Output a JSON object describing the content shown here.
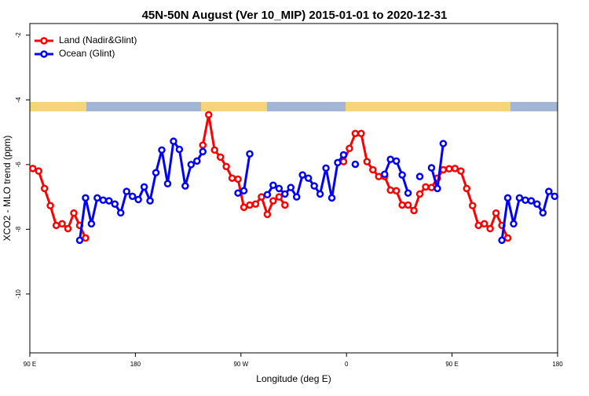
{
  "chart_data": {
    "type": "line",
    "title": "45N-50N August (Ver 10_MIP)   2015-01-01 to 2020-12-31",
    "xlabel": "Longitude (deg E)",
    "ylabel": "XCO2 - MLO trend (ppm)",
    "x": [
      92.5,
      97.5,
      102.5,
      107.5,
      112.5,
      117.5,
      122.5,
      127.5,
      132.5,
      137.5,
      142.5,
      147.5,
      152.5,
      157.5,
      162.5,
      167.5,
      172.5,
      177.5,
      182.5,
      187.5,
      192.5,
      197.5,
      202.5,
      207.5,
      212.5,
      217.5,
      222.5,
      227.5,
      232.5,
      237.5,
      242.5,
      247.5,
      252.5,
      257.5,
      262.5,
      267.5,
      272.5,
      277.5,
      282.5,
      287.5,
      292.5,
      297.5,
      302.5,
      307.5,
      312.5,
      317.5,
      322.5,
      327.5,
      332.5,
      337.5,
      342.5,
      347.5,
      352.5,
      357.5,
      362.5,
      367.5,
      372.5,
      377.5,
      382.5,
      387.5,
      392.5,
      397.5,
      402.5,
      407.5,
      412.5,
      417.5,
      422.5,
      427.5,
      432.5,
      437.5,
      442.5,
      447.5,
      452.5,
      457.5,
      462.5,
      467.5,
      472.5,
      477.5,
      482.5,
      487.5,
      492.5,
      497.5,
      502.5,
      507.5,
      512.5,
      517.5,
      522.5,
      527.5,
      532.5,
      537.5
    ],
    "series": [
      {
        "name": "Land (Nadir&Glint)",
        "color": "#ff0000",
        "values": [
          -6.12,
          -6.2,
          -6.74,
          -7.27,
          -7.88,
          -7.83,
          -7.98,
          -7.5,
          -7.88,
          -8.27,
          null,
          null,
          null,
          null,
          null,
          null,
          null,
          null,
          null,
          null,
          null,
          null,
          null,
          null,
          null,
          null,
          null,
          null,
          null,
          -5.4,
          -4.46,
          -5.55,
          -5.77,
          -6.06,
          -6.42,
          -6.45,
          -7.32,
          -7.25,
          -7.22,
          -7.0,
          -7.54,
          -7.12,
          -7.0,
          -7.25,
          null,
          null,
          null,
          null,
          null,
          null,
          null,
          null,
          null,
          -5.91,
          -5.5,
          -5.04,
          -5.04,
          -5.91,
          -6.16,
          -6.37,
          -6.37,
          -6.79,
          -6.81,
          -7.25,
          -7.25,
          -7.42,
          -6.91,
          -6.69,
          -6.71,
          -6.42,
          -6.16,
          -6.13,
          -6.12,
          -6.2,
          -6.74,
          -7.27,
          -7.88,
          -7.83,
          -7.98,
          -7.5,
          -7.88,
          -8.27,
          null,
          null,
          null,
          null,
          null,
          null,
          null,
          null
        ]
      },
      {
        "name": "Ocean (Glint)",
        "color": "#0000ff",
        "values": [
          null,
          null,
          null,
          null,
          null,
          null,
          null,
          null,
          -8.34,
          -7.03,
          -7.83,
          -7.03,
          -7.1,
          -7.12,
          -7.22,
          -7.49,
          -6.83,
          -6.98,
          -7.08,
          -6.69,
          -7.12,
          -6.25,
          -5.55,
          -6.59,
          -5.28,
          -5.53,
          -6.66,
          -6.0,
          -5.89,
          -5.6,
          null,
          null,
          null,
          null,
          null,
          -6.88,
          -6.81,
          -5.67,
          null,
          null,
          -6.93,
          -6.64,
          -6.74,
          -6.91,
          -6.71,
          -7.0,
          -6.32,
          -6.42,
          -6.66,
          -6.91,
          -6.11,
          -7.03,
          -5.94,
          -5.7,
          null,
          -5.99,
          null,
          null,
          null,
          null,
          -6.3,
          -5.84,
          -5.89,
          -6.32,
          -6.88,
          null,
          -6.37,
          null,
          -6.1,
          -6.74,
          -5.35,
          null,
          null,
          null,
          null,
          null,
          null,
          null,
          null,
          null,
          -8.34,
          -7.03,
          -7.83,
          -7.03,
          -7.1,
          -7.12,
          -7.22,
          -7.49,
          -6.83,
          -6.98
        ]
      }
    ],
    "xlim": [
      90,
      540
    ],
    "xticks": [
      {
        "value": 90,
        "label": "90 E"
      },
      180,
      {
        "value": 270,
        "label": "90 W"
      },
      {
        "value": 360,
        "label": "0"
      },
      {
        "value": 450,
        "label": "90 E"
      },
      {
        "value": 540,
        "label": "180"
      }
    ],
    "ylim": [
      -11.82,
      -1.64
    ],
    "yticks": [
      -2,
      -4,
      -6,
      -8,
      -10
    ],
    "legend": "top-left"
  }
}
